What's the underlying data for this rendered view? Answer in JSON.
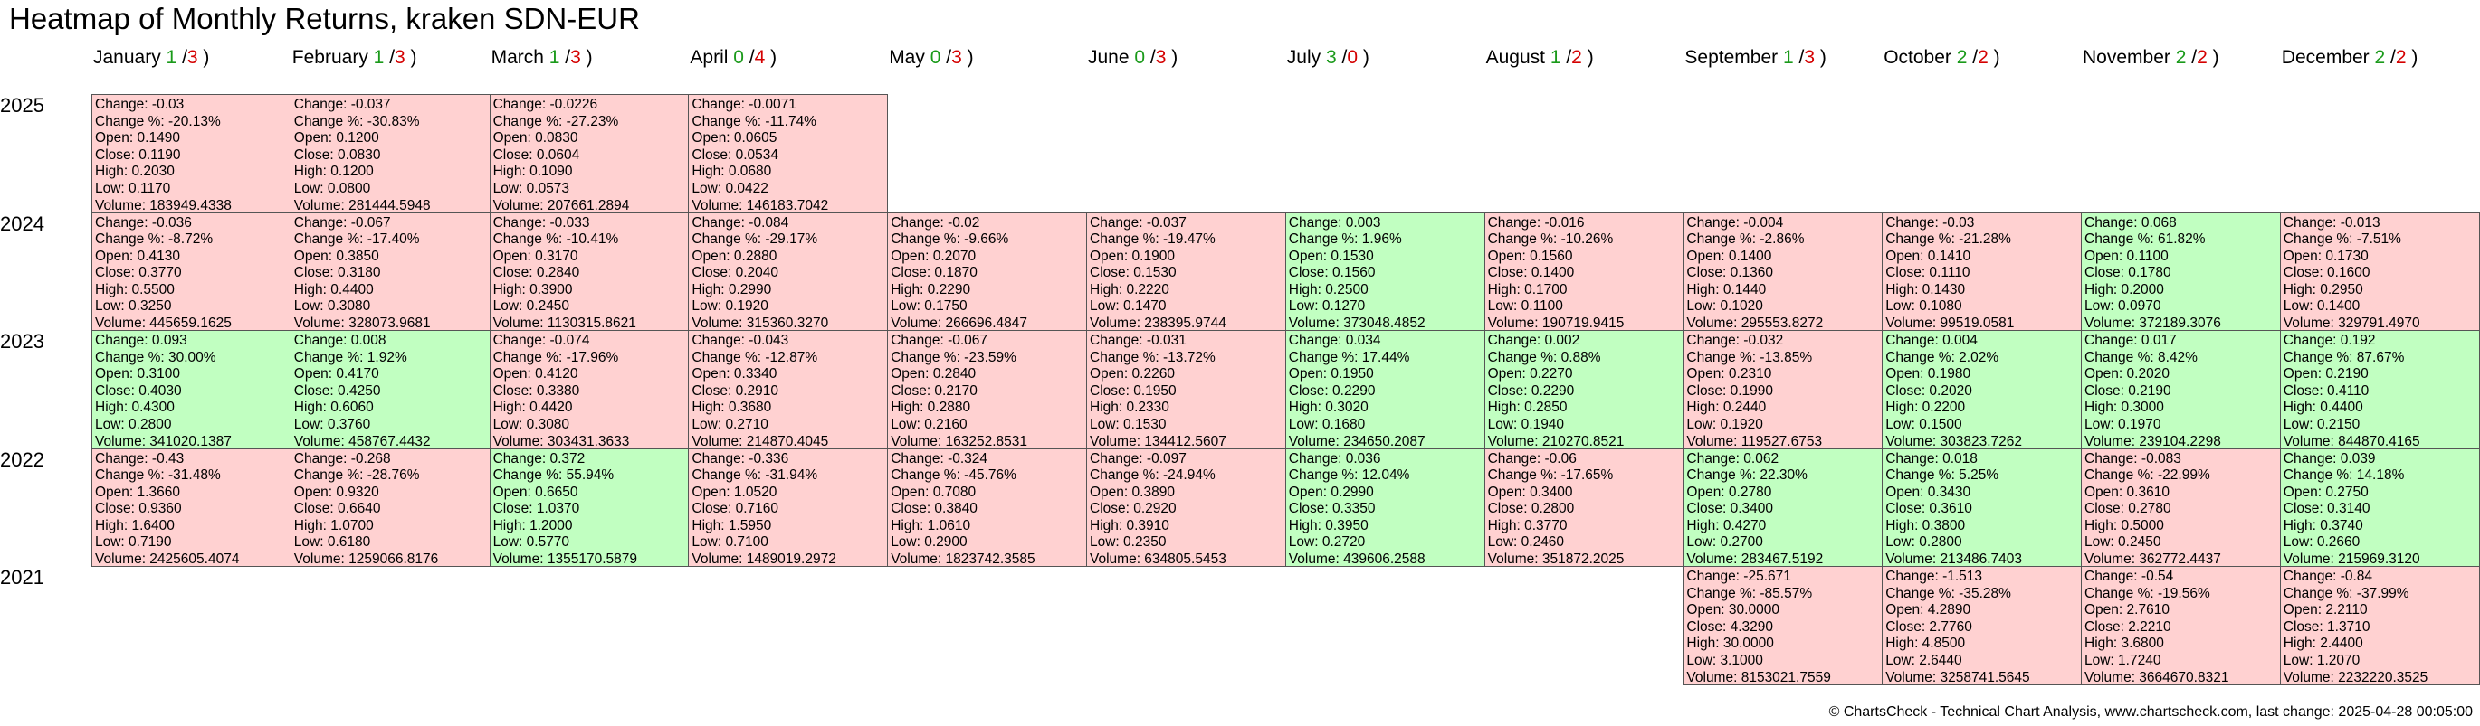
{
  "title": "Heatmap of Monthly Returns, kraken SDN-EUR",
  "footer": "© ChartsCheck - Technical Chart Analysis, www.chartscheck.com, last change: 2025-04-28 00:05:00",
  "colors": {
    "positive_bg": "#c1ffc1",
    "negative_bg": "#ffd1d1",
    "positive_text": "#1a9a1a",
    "negative_text": "#d40000"
  },
  "chart_data": {
    "type": "heatmap",
    "title": "Heatmap of Monthly Returns, kraken SDN-EUR",
    "months": [
      {
        "name": "January",
        "up": "1",
        "down": "3"
      },
      {
        "name": "February",
        "up": "1",
        "down": "3"
      },
      {
        "name": "March",
        "up": "1",
        "down": "3"
      },
      {
        "name": "April",
        "up": "0",
        "down": "4"
      },
      {
        "name": "May",
        "up": "0",
        "down": "3"
      },
      {
        "name": "June",
        "up": "0",
        "down": "3"
      },
      {
        "name": "July",
        "up": "3",
        "down": "0"
      },
      {
        "name": "August",
        "up": "1",
        "down": "2"
      },
      {
        "name": "September",
        "up": "1",
        "down": "3"
      },
      {
        "name": "October",
        "up": "2",
        "down": "2"
      },
      {
        "name": "November",
        "up": "2",
        "down": "2"
      },
      {
        "name": "December",
        "up": "2",
        "down": "2"
      }
    ],
    "years": [
      "2025",
      "2024",
      "2023",
      "2022",
      "2021"
    ],
    "cells": [
      {
        "year": "2025",
        "month": 0,
        "change": "-0.03",
        "change_pct": "-20.13%",
        "open": "0.1490",
        "close": "0.1190",
        "high": "0.2030",
        "low": "0.1170",
        "volume": "183949.4338"
      },
      {
        "year": "2025",
        "month": 1,
        "change": "-0.037",
        "change_pct": "-30.83%",
        "open": "0.1200",
        "close": "0.0830",
        "high": "0.1200",
        "low": "0.0800",
        "volume": "281444.5948"
      },
      {
        "year": "2025",
        "month": 2,
        "change": "-0.0226",
        "change_pct": "-27.23%",
        "open": "0.0830",
        "close": "0.0604",
        "high": "0.1090",
        "low": "0.0573",
        "volume": "207661.2894"
      },
      {
        "year": "2025",
        "month": 3,
        "change": "-0.0071",
        "change_pct": "-11.74%",
        "open": "0.0605",
        "close": "0.0534",
        "high": "0.0680",
        "low": "0.0422",
        "volume": "146183.7042"
      },
      {
        "year": "2024",
        "month": 0,
        "change": "-0.036",
        "change_pct": "-8.72%",
        "open": "0.4130",
        "close": "0.3770",
        "high": "0.5500",
        "low": "0.3250",
        "volume": "445659.1625"
      },
      {
        "year": "2024",
        "month": 1,
        "change": "-0.067",
        "change_pct": "-17.40%",
        "open": "0.3850",
        "close": "0.3180",
        "high": "0.4400",
        "low": "0.3080",
        "volume": "328073.9681"
      },
      {
        "year": "2024",
        "month": 2,
        "change": "-0.033",
        "change_pct": "-10.41%",
        "open": "0.3170",
        "close": "0.2840",
        "high": "0.3900",
        "low": "0.2450",
        "volume": "1130315.8621"
      },
      {
        "year": "2024",
        "month": 3,
        "change": "-0.084",
        "change_pct": "-29.17%",
        "open": "0.2880",
        "close": "0.2040",
        "high": "0.2990",
        "low": "0.1920",
        "volume": "315360.3270"
      },
      {
        "year": "2024",
        "month": 4,
        "change": "-0.02",
        "change_pct": "-9.66%",
        "open": "0.2070",
        "close": "0.1870",
        "high": "0.2290",
        "low": "0.1750",
        "volume": "266696.4847"
      },
      {
        "year": "2024",
        "month": 5,
        "change": "-0.037",
        "change_pct": "-19.47%",
        "open": "0.1900",
        "close": "0.1530",
        "high": "0.2220",
        "low": "0.1470",
        "volume": "238395.9744"
      },
      {
        "year": "2024",
        "month": 6,
        "change": "0.003",
        "change_pct": "1.96%",
        "open": "0.1530",
        "close": "0.1560",
        "high": "0.2500",
        "low": "0.1270",
        "volume": "373048.4852"
      },
      {
        "year": "2024",
        "month": 7,
        "change": "-0.016",
        "change_pct": "-10.26%",
        "open": "0.1560",
        "close": "0.1400",
        "high": "0.1700",
        "low": "0.1100",
        "volume": "190719.9415"
      },
      {
        "year": "2024",
        "month": 8,
        "change": "-0.004",
        "change_pct": "-2.86%",
        "open": "0.1400",
        "close": "0.1360",
        "high": "0.1440",
        "low": "0.1020",
        "volume": "295553.8272"
      },
      {
        "year": "2024",
        "month": 9,
        "change": "-0.03",
        "change_pct": "-21.28%",
        "open": "0.1410",
        "close": "0.1110",
        "high": "0.1430",
        "low": "0.1080",
        "volume": "99519.0581"
      },
      {
        "year": "2024",
        "month": 10,
        "change": "0.068",
        "change_pct": "61.82%",
        "open": "0.1100",
        "close": "0.1780",
        "high": "0.2000",
        "low": "0.0970",
        "volume": "372189.3076"
      },
      {
        "year": "2024",
        "month": 11,
        "change": "-0.013",
        "change_pct": "-7.51%",
        "open": "0.1730",
        "close": "0.1600",
        "high": "0.2950",
        "low": "0.1400",
        "volume": "329791.4970"
      },
      {
        "year": "2023",
        "month": 0,
        "change": "0.093",
        "change_pct": "30.00%",
        "open": "0.3100",
        "close": "0.4030",
        "high": "0.4300",
        "low": "0.2800",
        "volume": "341020.1387"
      },
      {
        "year": "2023",
        "month": 1,
        "change": "0.008",
        "change_pct": "1.92%",
        "open": "0.4170",
        "close": "0.4250",
        "high": "0.6060",
        "low": "0.3760",
        "volume": "458767.4432"
      },
      {
        "year": "2023",
        "month": 2,
        "change": "-0.074",
        "change_pct": "-17.96%",
        "open": "0.4120",
        "close": "0.3380",
        "high": "0.4420",
        "low": "0.3080",
        "volume": "303431.3633"
      },
      {
        "year": "2023",
        "month": 3,
        "change": "-0.043",
        "change_pct": "-12.87%",
        "open": "0.3340",
        "close": "0.2910",
        "high": "0.3680",
        "low": "0.2710",
        "volume": "214870.4045"
      },
      {
        "year": "2023",
        "month": 4,
        "change": "-0.067",
        "change_pct": "-23.59%",
        "open": "0.2840",
        "close": "0.2170",
        "high": "0.2880",
        "low": "0.2160",
        "volume": "163252.8531"
      },
      {
        "year": "2023",
        "month": 5,
        "change": "-0.031",
        "change_pct": "-13.72%",
        "open": "0.2260",
        "close": "0.1950",
        "high": "0.2330",
        "low": "0.1530",
        "volume": "134412.5607"
      },
      {
        "year": "2023",
        "month": 6,
        "change": "0.034",
        "change_pct": "17.44%",
        "open": "0.1950",
        "close": "0.2290",
        "high": "0.3020",
        "low": "0.1680",
        "volume": "234650.2087"
      },
      {
        "year": "2023",
        "month": 7,
        "change": "0.002",
        "change_pct": "0.88%",
        "open": "0.2270",
        "close": "0.2290",
        "high": "0.2850",
        "low": "0.1940",
        "volume": "210270.8521"
      },
      {
        "year": "2023",
        "month": 8,
        "change": "-0.032",
        "change_pct": "-13.85%",
        "open": "0.2310",
        "close": "0.1990",
        "high": "0.2440",
        "low": "0.1920",
        "volume": "119527.6753"
      },
      {
        "year": "2023",
        "month": 9,
        "change": "0.004",
        "change_pct": "2.02%",
        "open": "0.1980",
        "close": "0.2020",
        "high": "0.2200",
        "low": "0.1500",
        "volume": "303823.7262"
      },
      {
        "year": "2023",
        "month": 10,
        "change": "0.017",
        "change_pct": "8.42%",
        "open": "0.2020",
        "close": "0.2190",
        "high": "0.3000",
        "low": "0.1970",
        "volume": "239104.2298"
      },
      {
        "year": "2023",
        "month": 11,
        "change": "0.192",
        "change_pct": "87.67%",
        "open": "0.2190",
        "close": "0.4110",
        "high": "0.4400",
        "low": "0.2150",
        "volume": "844870.4165"
      },
      {
        "year": "2022",
        "month": 0,
        "change": "-0.43",
        "change_pct": "-31.48%",
        "open": "1.3660",
        "close": "0.9360",
        "high": "1.6400",
        "low": "0.7190",
        "volume": "2425605.4074"
      },
      {
        "year": "2022",
        "month": 1,
        "change": "-0.268",
        "change_pct": "-28.76%",
        "open": "0.9320",
        "close": "0.6640",
        "high": "1.0700",
        "low": "0.6180",
        "volume": "1259066.8176"
      },
      {
        "year": "2022",
        "month": 2,
        "change": "0.372",
        "change_pct": "55.94%",
        "open": "0.6650",
        "close": "1.0370",
        "high": "1.2000",
        "low": "0.5770",
        "volume": "1355170.5879"
      },
      {
        "year": "2022",
        "month": 3,
        "change": "-0.336",
        "change_pct": "-31.94%",
        "open": "1.0520",
        "close": "0.7160",
        "high": "1.5950",
        "low": "0.7100",
        "volume": "1489019.2972"
      },
      {
        "year": "2022",
        "month": 4,
        "change": "-0.324",
        "change_pct": "-45.76%",
        "open": "0.7080",
        "close": "0.3840",
        "high": "1.0610",
        "low": "0.2900",
        "volume": "1823742.3585"
      },
      {
        "year": "2022",
        "month": 5,
        "change": "-0.097",
        "change_pct": "-24.94%",
        "open": "0.3890",
        "close": "0.2920",
        "high": "0.3910",
        "low": "0.2350",
        "volume": "634805.5453"
      },
      {
        "year": "2022",
        "month": 6,
        "change": "0.036",
        "change_pct": "12.04%",
        "open": "0.2990",
        "close": "0.3350",
        "high": "0.3950",
        "low": "0.2720",
        "volume": "439606.2588"
      },
      {
        "year": "2022",
        "month": 7,
        "change": "-0.06",
        "change_pct": "-17.65%",
        "open": "0.3400",
        "close": "0.2800",
        "high": "0.3770",
        "low": "0.2460",
        "volume": "351872.2025"
      },
      {
        "year": "2022",
        "month": 8,
        "change": "0.062",
        "change_pct": "22.30%",
        "open": "0.2780",
        "close": "0.3400",
        "high": "0.4270",
        "low": "0.2700",
        "volume": "283467.5192"
      },
      {
        "year": "2022",
        "month": 9,
        "change": "0.018",
        "change_pct": "5.25%",
        "open": "0.3430",
        "close": "0.3610",
        "high": "0.3800",
        "low": "0.2800",
        "volume": "213486.7403"
      },
      {
        "year": "2022",
        "month": 10,
        "change": "-0.083",
        "change_pct": "-22.99%",
        "open": "0.3610",
        "close": "0.2780",
        "high": "0.5000",
        "low": "0.2450",
        "volume": "362772.4437"
      },
      {
        "year": "2022",
        "month": 11,
        "change": "0.039",
        "change_pct": "14.18%",
        "open": "0.2750",
        "close": "0.3140",
        "high": "0.3740",
        "low": "0.2660",
        "volume": "215969.3120"
      },
      {
        "year": "2021",
        "month": 8,
        "change": "-25.671",
        "change_pct": "-85.57%",
        "open": "30.0000",
        "close": "4.3290",
        "high": "30.0000",
        "low": "3.1000",
        "volume": "8153021.7559"
      },
      {
        "year": "2021",
        "month": 9,
        "change": "-1.513",
        "change_pct": "-35.28%",
        "open": "4.2890",
        "close": "2.7760",
        "high": "4.8500",
        "low": "2.6440",
        "volume": "3258741.5645"
      },
      {
        "year": "2021",
        "month": 10,
        "change": "-0.54",
        "change_pct": "-19.56%",
        "open": "2.7610",
        "close": "2.2210",
        "high": "3.6800",
        "low": "1.7240",
        "volume": "3664670.8321"
      },
      {
        "year": "2021",
        "month": 11,
        "change": "-0.84",
        "change_pct": "-37.99%",
        "open": "2.2110",
        "close": "1.3710",
        "high": "2.4400",
        "low": "1.2070",
        "volume": "2232220.3525"
      }
    ]
  }
}
